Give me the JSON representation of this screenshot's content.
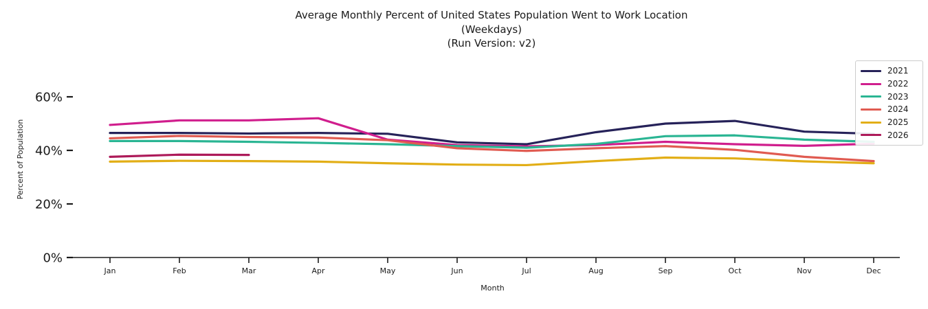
{
  "chart_data": {
    "type": "line",
    "title": "Average Monthly Percent of United States Population Went to Work Location",
    "subtitle": "(Weekdays)",
    "subtitle2": "(Run Version: v2)",
    "xlabel": "Month",
    "ylabel": "Percent of Population",
    "categories": [
      "Jan",
      "Feb",
      "Mar",
      "Apr",
      "May",
      "Jun",
      "Jul",
      "Aug",
      "Sep",
      "Oct",
      "Nov",
      "Dec"
    ],
    "ytick_labels": [
      "0%",
      "20%",
      "40%",
      "60%"
    ],
    "ytick_values": [
      0,
      20,
      40,
      60
    ],
    "ylim": [
      0,
      65
    ],
    "unit": "percent",
    "grid": false,
    "legend_position": "upper right",
    "axis_color": "#1a1a1a",
    "series": [
      {
        "name": "2021",
        "color": "#262259",
        "values": [
          46.5,
          46.5,
          46.3,
          46.5,
          46.2,
          43.0,
          42.3,
          46.8,
          50.0,
          51.0,
          47.0,
          46.2
        ]
      },
      {
        "name": "2022",
        "color": "#d01e8d",
        "values": [
          49.5,
          51.2,
          51.2,
          52.0,
          44.0,
          42.0,
          41.5,
          42.0,
          43.2,
          42.3,
          41.7,
          42.5
        ]
      },
      {
        "name": "2023",
        "color": "#2ab593",
        "values": [
          43.5,
          43.5,
          43.2,
          42.8,
          42.3,
          41.6,
          41.0,
          42.4,
          45.3,
          45.6,
          44.0,
          43.2
        ]
      },
      {
        "name": "2024",
        "color": "#e05b51",
        "values": [
          44.5,
          45.4,
          45.0,
          44.8,
          43.8,
          40.8,
          39.8,
          40.8,
          41.6,
          40.2,
          37.6,
          36.0
        ]
      },
      {
        "name": "2025",
        "color": "#e2ae16",
        "values": [
          35.8,
          36.1,
          36.0,
          35.8,
          35.2,
          34.7,
          34.5,
          36.0,
          37.3,
          37.0,
          35.9,
          35.2
        ]
      },
      {
        "name": "2026",
        "color": "#ad1a59",
        "values": [
          37.6,
          38.4,
          38.3,
          null,
          null,
          null,
          null,
          null,
          null,
          null,
          null,
          null
        ]
      }
    ]
  }
}
